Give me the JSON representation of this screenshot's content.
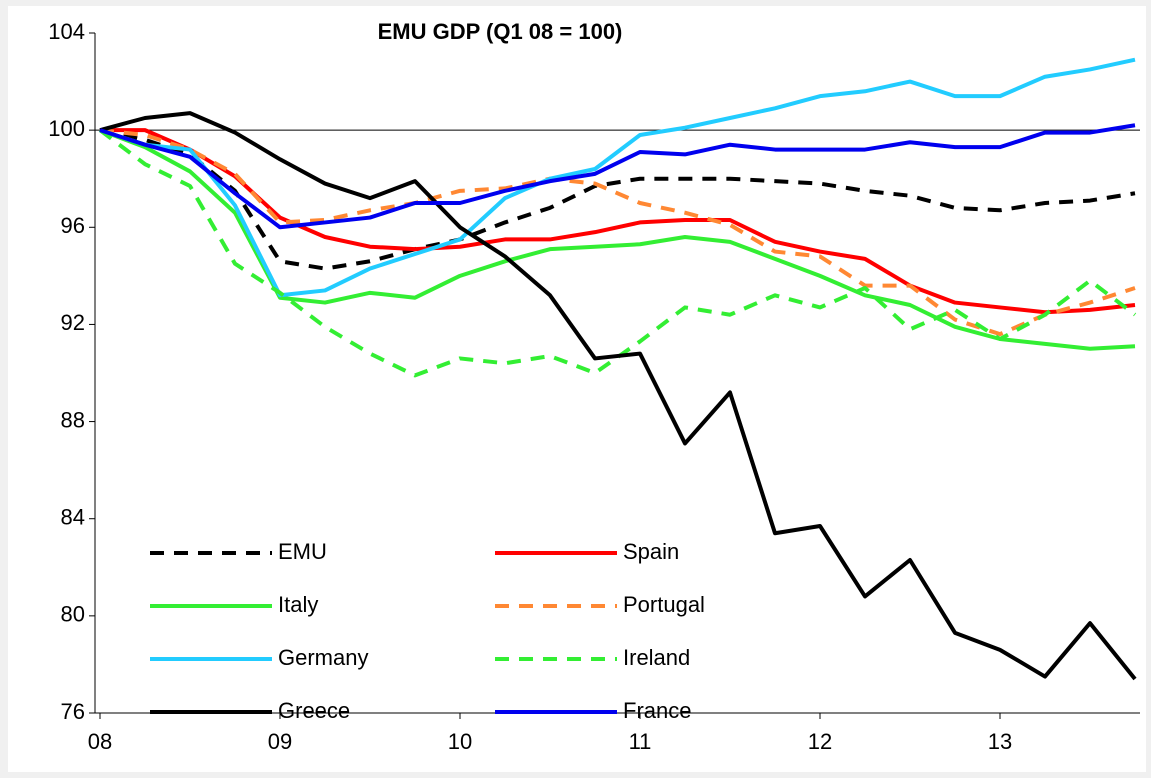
{
  "chart_data": {
    "type": "line",
    "title": "EMU GDP (Q1 08 = 100)",
    "categories": [
      "08",
      null,
      null,
      null,
      "09",
      null,
      null,
      null,
      "10",
      null,
      null,
      null,
      "11",
      null,
      null,
      null,
      "12",
      null,
      null,
      null,
      "13",
      null,
      null,
      null
    ],
    "ylim": [
      76,
      104
    ],
    "yticks": [
      76,
      80,
      84,
      88,
      92,
      96,
      100,
      104
    ],
    "reference_line": 100,
    "legend": "bottom-left",
    "series": [
      {
        "name": "EMU",
        "color": "#000000",
        "style": "dashed",
        "values": [
          100,
          99.6,
          99,
          97.5,
          94.6,
          94.3,
          94.6,
          95.1,
          95.5,
          96.2,
          96.8,
          97.7,
          98,
          98,
          98,
          97.9,
          97.8,
          97.5,
          97.3,
          96.8,
          96.7,
          97,
          97.1,
          97.4
        ]
      },
      {
        "name": "Spain",
        "color": "#ff0000",
        "style": "solid",
        "values": [
          100,
          100,
          99.2,
          98.1,
          96.4,
          95.6,
          95.2,
          95.1,
          95.2,
          95.5,
          95.5,
          95.8,
          96.2,
          96.3,
          96.3,
          95.4,
          95,
          94.7,
          93.6,
          92.9,
          92.7,
          92.5,
          92.6,
          92.8
        ]
      },
      {
        "name": "Italy",
        "color": "#33ee33",
        "style": "solid",
        "values": [
          100,
          99.3,
          98.3,
          96.6,
          93.1,
          92.9,
          93.3,
          93.1,
          94,
          94.6,
          95.1,
          95.2,
          95.3,
          95.6,
          95.4,
          94.7,
          94,
          93.2,
          92.8,
          91.9,
          91.4,
          91.2,
          91,
          91.1
        ]
      },
      {
        "name": "Portugal",
        "color": "#ff8833",
        "style": "dashed",
        "values": [
          100,
          99.8,
          99.2,
          98.2,
          96.2,
          96.3,
          96.7,
          97,
          97.5,
          97.6,
          98,
          97.8,
          97,
          96.6,
          96.1,
          95,
          94.8,
          93.6,
          93.6,
          92.2,
          91.6,
          92.4,
          92.9,
          93.5
        ]
      },
      {
        "name": "Germany",
        "color": "#22ccff",
        "style": "solid",
        "values": [
          100,
          99.4,
          99.2,
          96.9,
          93.2,
          93.4,
          94.3,
          94.9,
          95.5,
          97.2,
          98,
          98.4,
          99.8,
          100.1,
          100.5,
          100.9,
          101.4,
          101.6,
          102,
          101.4,
          101.4,
          102.2,
          102.5,
          102.9
        ]
      },
      {
        "name": "Ireland",
        "color": "#33ee33",
        "style": "dashed",
        "values": [
          100,
          98.6,
          97.7,
          94.5,
          93.3,
          91.9,
          90.8,
          89.9,
          90.6,
          90.4,
          90.7,
          90,
          91.3,
          92.7,
          92.4,
          93.2,
          92.7,
          93.5,
          91.8,
          92.6,
          91.4,
          92.4,
          93.8,
          92.4
        ]
      },
      {
        "name": "Greece",
        "color": "#000000",
        "style": "solid",
        "values": [
          100,
          100.5,
          100.7,
          99.9,
          98.8,
          97.8,
          97.2,
          97.9,
          96,
          94.8,
          93.2,
          90.6,
          90.8,
          87.1,
          89.2,
          83.4,
          83.7,
          80.8,
          82.3,
          79.3,
          78.6,
          77.5,
          79.7,
          77.4
        ]
      },
      {
        "name": "France",
        "color": "#0000ee",
        "style": "solid",
        "values": [
          100,
          99.4,
          98.9,
          97.4,
          96,
          96.2,
          96.4,
          97,
          97,
          97.5,
          97.9,
          98.2,
          99.1,
          99,
          99.4,
          99.2,
          99.2,
          99.2,
          99.5,
          99.3,
          99.3,
          99.9,
          99.9,
          100.2
        ]
      }
    ]
  }
}
